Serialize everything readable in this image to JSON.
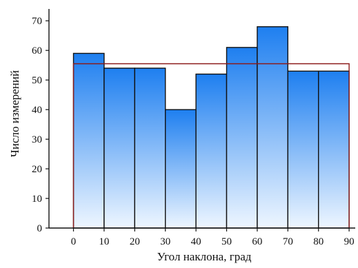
{
  "chart_data": {
    "type": "bar",
    "title": "",
    "xlabel": "Угол наклона, град",
    "ylabel": "Число измерений",
    "bins": [
      {
        "from": 0,
        "to": 10,
        "value": 59
      },
      {
        "from": 10,
        "to": 20,
        "value": 54
      },
      {
        "from": 20,
        "to": 30,
        "value": 54
      },
      {
        "from": 30,
        "to": 40,
        "value": 40
      },
      {
        "from": 40,
        "to": 50,
        "value": 52
      },
      {
        "from": 50,
        "to": 60,
        "value": 61
      },
      {
        "from": 60,
        "to": 70,
        "value": 68
      },
      {
        "from": 70,
        "to": 80,
        "value": 53
      },
      {
        "from": 80,
        "to": 90,
        "value": 53
      }
    ],
    "reference_line": {
      "value": 55.5,
      "from": 0,
      "to": 90,
      "color": "#8b1a1a"
    },
    "xticks": [
      0,
      10,
      20,
      30,
      40,
      50,
      60,
      70,
      80,
      90
    ],
    "yticks": [
      0,
      10,
      20,
      30,
      40,
      50,
      60,
      70
    ],
    "xlim": [
      -8,
      92
    ],
    "ylim": [
      0,
      74
    ],
    "grid": false,
    "legend": "none",
    "colors": {
      "bar_top": "#1e7ff0",
      "bar_bottom": "#eef6ff",
      "bar_edge": "#111111",
      "reference": "#8b1a1a"
    }
  }
}
